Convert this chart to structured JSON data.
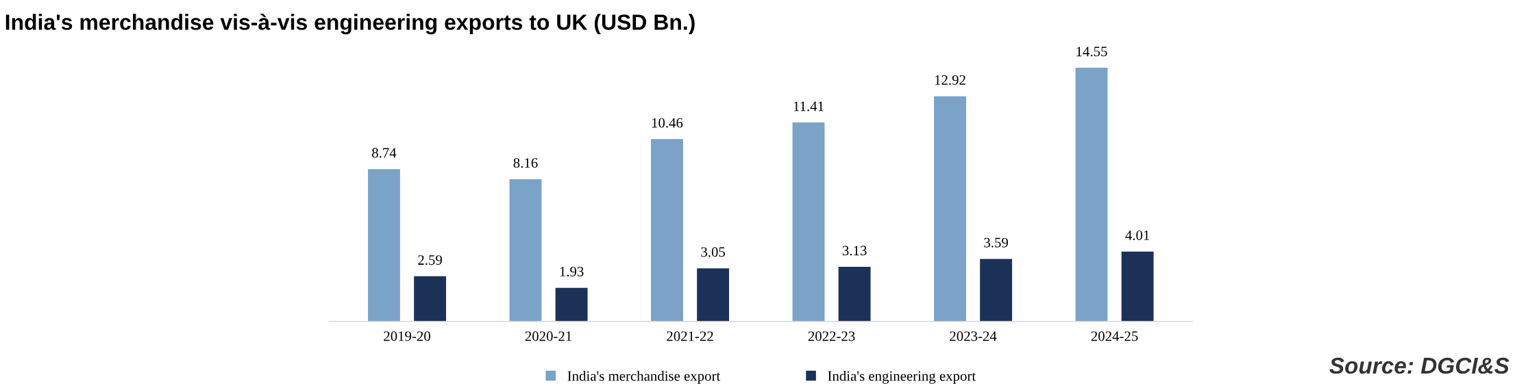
{
  "chart_data": {
    "type": "bar",
    "title": "India's merchandise vis-à-vis engineering exports to UK (USD Bn.)",
    "categories": [
      "2019-20",
      "2020-21",
      "2021-22",
      "2022-23",
      "2023-24",
      "2024-25"
    ],
    "series": [
      {
        "name": "India's merchandise export",
        "color": "#7ba3c8",
        "values": [
          8.74,
          8.16,
          10.46,
          11.41,
          12.92,
          14.55
        ]
      },
      {
        "name": "India's engineering export",
        "color": "#1b3158",
        "values": [
          2.59,
          1.93,
          3.05,
          3.13,
          3.59,
          4.01
        ]
      }
    ],
    "data_labels": true,
    "legend": "bottom",
    "annotations": [
      "Source: DGCI&S"
    ]
  }
}
